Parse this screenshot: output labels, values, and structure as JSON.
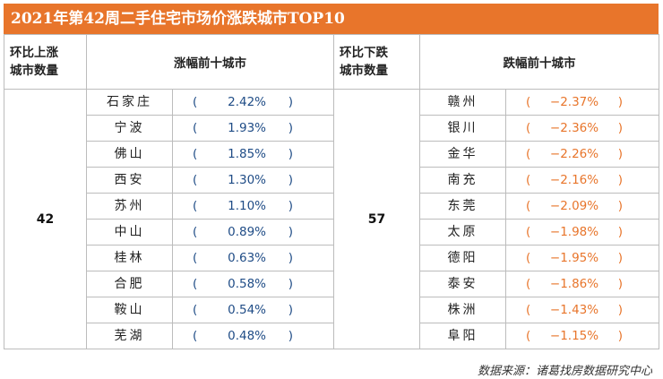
{
  "title": "2021年第42周二手住宅市场价涨跌城市TOP10",
  "headers": {
    "up_count_label_line1": "环比上涨",
    "up_count_label_line2": "城市数量",
    "up_list_label": "涨幅前十城市",
    "down_count_label_line1": "环比下跌",
    "down_count_label_line2": "城市数量",
    "down_list_label": "跌幅前十城市"
  },
  "up_count": "42",
  "down_count": "57",
  "rows": [
    {
      "up_city": "石家庄",
      "up_value": "2.42%",
      "down_city": "赣州",
      "down_value": "−2.37%"
    },
    {
      "up_city": "宁波",
      "up_value": "1.93%",
      "down_city": "银川",
      "down_value": "−2.36%"
    },
    {
      "up_city": "佛山",
      "up_value": "1.85%",
      "down_city": "金华",
      "down_value": "−2.26%"
    },
    {
      "up_city": "西安",
      "up_value": "1.30%",
      "down_city": "南充",
      "down_value": "−2.16%"
    },
    {
      "up_city": "苏州",
      "up_value": "1.10%",
      "down_city": "东莞",
      "down_value": "−2.09%"
    },
    {
      "up_city": "中山",
      "up_value": "0.89%",
      "down_city": "太原",
      "down_value": "−1.98%"
    },
    {
      "up_city": "桂林",
      "up_value": "0.63%",
      "down_city": "德阳",
      "down_value": "−1.95%"
    },
    {
      "up_city": "合肥",
      "up_value": "0.58%",
      "down_city": "泰安",
      "down_value": "−1.86%"
    },
    {
      "up_city": "鞍山",
      "up_value": "0.54%",
      "down_city": "株洲",
      "down_value": "−1.43%"
    },
    {
      "up_city": "芜湖",
      "up_value": "0.48%",
      "down_city": "阜阳",
      "down_value": "−1.15%"
    }
  ],
  "paren_open": "(",
  "paren_close": ")",
  "source": "数据来源：诸葛找房数据研究中心",
  "colors": {
    "accent": "#e8752b",
    "up_text": "#1f4c86",
    "down_text": "#e8752b"
  }
}
